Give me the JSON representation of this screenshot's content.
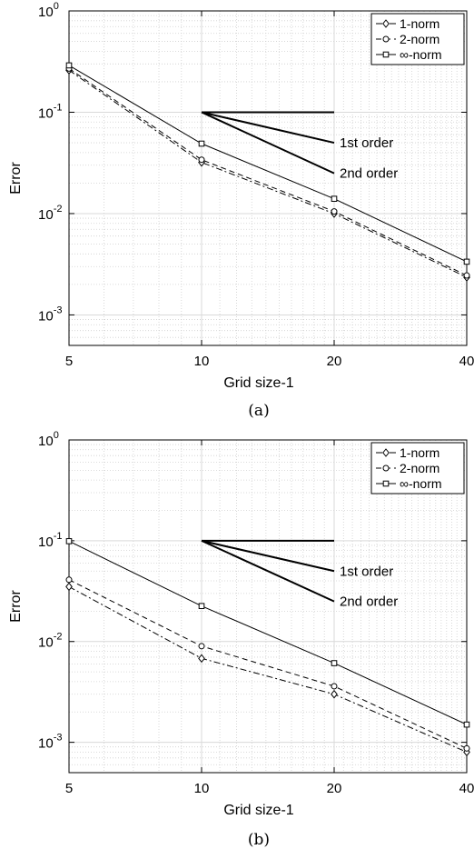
{
  "chart_data": [
    {
      "type": "line",
      "caption": "(a)",
      "xlabel": "Grid size-1",
      "ylabel": "Error",
      "xscale": "log",
      "yscale": "log",
      "xlim": [
        5,
        40
      ],
      "ylim": [
        0.0005,
        1
      ],
      "xticks": [
        5,
        10,
        20,
        40
      ],
      "xtick_labels": [
        "5",
        "10",
        "20",
        "40"
      ],
      "yticks": [
        0.001,
        0.01,
        0.1,
        1
      ],
      "ytick_labels": [
        {
          "base": "10",
          "exp": "-3"
        },
        {
          "base": "10",
          "exp": "-2"
        },
        {
          "base": "10",
          "exp": "-1"
        },
        {
          "base": "10",
          "exp": "0"
        }
      ],
      "grid": true,
      "legend_position": "top-right",
      "x": [
        5,
        10,
        20,
        40
      ],
      "series": [
        {
          "name": "1-norm",
          "marker": "diamond",
          "linestyle": "dashdot",
          "values": [
            0.26,
            0.032,
            0.01,
            0.00235
          ]
        },
        {
          "name": "2-norm",
          "marker": "circle",
          "linestyle": "dashed",
          "values": [
            0.27,
            0.034,
            0.0105,
            0.00245
          ]
        },
        {
          "name": "∞-norm",
          "marker": "square",
          "linestyle": "solid",
          "values": [
            0.29,
            0.049,
            0.014,
            0.00335
          ]
        }
      ],
      "reference": {
        "origin": {
          "x": 10,
          "y": 0.1
        },
        "end_x": 20,
        "lines": [
          {
            "slope": 0,
            "label": ""
          },
          {
            "slope": -1,
            "label": "1st order"
          },
          {
            "slope": -2,
            "label": "2nd order"
          }
        ]
      }
    },
    {
      "type": "line",
      "caption": "(b)",
      "xlabel": "Grid size-1",
      "ylabel": "Error",
      "xscale": "log",
      "yscale": "log",
      "xlim": [
        5,
        40
      ],
      "ylim": [
        0.0005,
        1
      ],
      "xticks": [
        5,
        10,
        20,
        40
      ],
      "xtick_labels": [
        "5",
        "10",
        "20",
        "40"
      ],
      "yticks": [
        0.001,
        0.01,
        0.1,
        1
      ],
      "ytick_labels": [
        {
          "base": "10",
          "exp": "-3"
        },
        {
          "base": "10",
          "exp": "-2"
        },
        {
          "base": "10",
          "exp": "-1"
        },
        {
          "base": "10",
          "exp": "0"
        }
      ],
      "grid": true,
      "legend_position": "top-right",
      "x": [
        5,
        10,
        20,
        40
      ],
      "series": [
        {
          "name": "1-norm",
          "marker": "diamond",
          "linestyle": "dashdot",
          "values": [
            0.035,
            0.0068,
            0.003,
            0.0008
          ]
        },
        {
          "name": "2-norm",
          "marker": "circle",
          "linestyle": "dashed",
          "values": [
            0.041,
            0.009,
            0.0036,
            0.00087
          ]
        },
        {
          "name": "∞-norm",
          "marker": "square",
          "linestyle": "solid",
          "values": [
            0.099,
            0.0225,
            0.0061,
            0.0015
          ]
        }
      ],
      "reference": {
        "origin": {
          "x": 10,
          "y": 0.1
        },
        "end_x": 20,
        "lines": [
          {
            "slope": 0,
            "label": ""
          },
          {
            "slope": -1,
            "label": "1st order"
          },
          {
            "slope": -2,
            "label": "2nd order"
          }
        ]
      }
    }
  ]
}
